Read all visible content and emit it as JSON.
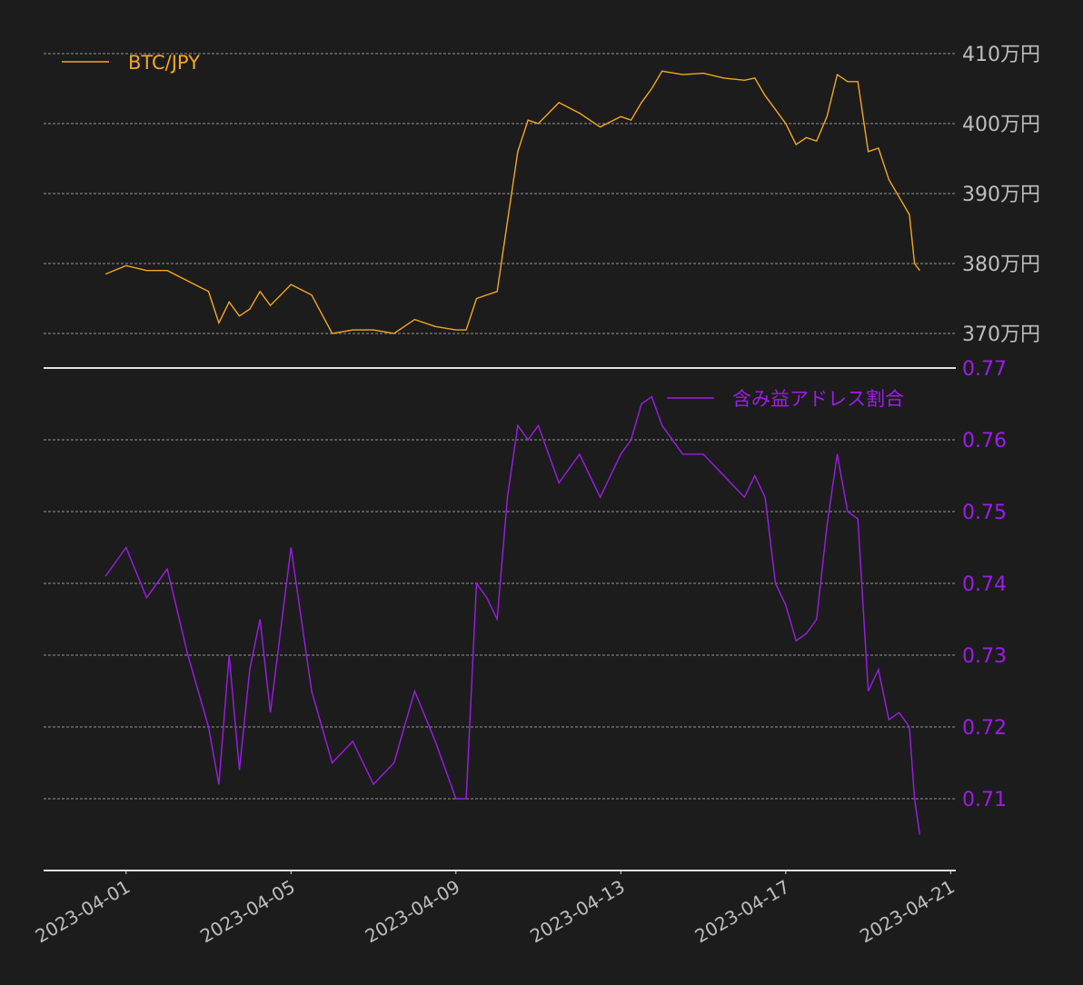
{
  "colors": {
    "background": "#1c1c1c",
    "btc_line": "#f5a623",
    "ratio_line": "#9d1ce8",
    "grid": "#bdbdbd",
    "axis": "#e0e0e0",
    "tick_text": "#bdbdbd"
  },
  "chart_data": [
    {
      "type": "line",
      "series": [
        {
          "name": "BTC/JPY",
          "x": [
            "2023-03-31T12:00",
            "2023-04-01T00:00",
            "2023-04-01T12:00",
            "2023-04-02T00:00",
            "2023-04-02T12:00",
            "2023-04-03T00:00",
            "2023-04-03T06:00",
            "2023-04-03T12:00",
            "2023-04-03T18:00",
            "2023-04-04T00:00",
            "2023-04-04T06:00",
            "2023-04-04T12:00",
            "2023-04-05T00:00",
            "2023-04-05T12:00",
            "2023-04-06T00:00",
            "2023-04-06T12:00",
            "2023-04-07T00:00",
            "2023-04-07T12:00",
            "2023-04-08T00:00",
            "2023-04-08T12:00",
            "2023-04-09T00:00",
            "2023-04-09T06:00",
            "2023-04-09T12:00",
            "2023-04-09T18:00",
            "2023-04-10T00:00",
            "2023-04-10T06:00",
            "2023-04-10T12:00",
            "2023-04-10T18:00",
            "2023-04-11T00:00",
            "2023-04-11T12:00",
            "2023-04-12T00:00",
            "2023-04-12T12:00",
            "2023-04-13T00:00",
            "2023-04-13T06:00",
            "2023-04-13T12:00",
            "2023-04-13T18:00",
            "2023-04-14T00:00",
            "2023-04-14T12:00",
            "2023-04-15T00:00",
            "2023-04-15T12:00",
            "2023-04-16T00:00",
            "2023-04-16T06:00",
            "2023-04-16T12:00",
            "2023-04-16T18:00",
            "2023-04-17T00:00",
            "2023-04-17T06:00",
            "2023-04-17T12:00",
            "2023-04-17T18:00",
            "2023-04-18T00:00",
            "2023-04-18T06:00",
            "2023-04-18T12:00",
            "2023-04-18T18:00",
            "2023-04-19T00:00",
            "2023-04-19T06:00",
            "2023-04-19T12:00",
            "2023-04-19T18:00",
            "2023-04-20T00:00",
            "2023-04-20T03:00",
            "2023-04-20T06:00"
          ],
          "values": [
            3785000,
            3797000,
            3790000,
            3790000,
            3775000,
            3760000,
            3715000,
            3745000,
            3725000,
            3735000,
            3760000,
            3740000,
            3770000,
            3755000,
            3700000,
            3705000,
            3705000,
            3700000,
            3720000,
            3710000,
            3705000,
            3705000,
            3750000,
            3755000,
            3760000,
            3860000,
            3960000,
            4005000,
            4000000,
            4030000,
            4015000,
            3995000,
            4010000,
            4005000,
            4030000,
            4050000,
            4075000,
            4070000,
            4072000,
            4065000,
            4062000,
            4065000,
            4040000,
            4020000,
            4000000,
            3970000,
            3980000,
            3975000,
            4010000,
            4070000,
            4060000,
            4060000,
            3960000,
            3965000,
            3920000,
            3895000,
            3870000,
            3800000,
            3790000
          ]
        }
      ],
      "yticks": [
        "370万円",
        "380万円",
        "390万円",
        "400万円",
        "410万円"
      ],
      "ytick_values": [
        3700000,
        3800000,
        3900000,
        4000000,
        4100000
      ],
      "ylim": [
        3680000,
        4112000
      ],
      "xlim": [
        "2023-03-30T00:00",
        "2023-04-21T03:00"
      ],
      "grid": true,
      "legend": "top-left"
    },
    {
      "type": "line",
      "series": [
        {
          "name": "含み益アドレス割合",
          "x": [
            "2023-03-31T12:00",
            "2023-04-01T00:00",
            "2023-04-01T12:00",
            "2023-04-02T00:00",
            "2023-04-02T12:00",
            "2023-04-03T00:00",
            "2023-04-03T06:00",
            "2023-04-03T12:00",
            "2023-04-03T18:00",
            "2023-04-04T00:00",
            "2023-04-04T06:00",
            "2023-04-04T12:00",
            "2023-04-05T00:00",
            "2023-04-05T12:00",
            "2023-04-06T00:00",
            "2023-04-06T12:00",
            "2023-04-07T00:00",
            "2023-04-07T12:00",
            "2023-04-08T00:00",
            "2023-04-08T12:00",
            "2023-04-09T00:00",
            "2023-04-09T06:00",
            "2023-04-09T12:00",
            "2023-04-09T18:00",
            "2023-04-10T00:00",
            "2023-04-10T06:00",
            "2023-04-10T12:00",
            "2023-04-10T18:00",
            "2023-04-11T00:00",
            "2023-04-11T12:00",
            "2023-04-12T00:00",
            "2023-04-12T12:00",
            "2023-04-13T00:00",
            "2023-04-13T06:00",
            "2023-04-13T12:00",
            "2023-04-13T18:00",
            "2023-04-14T00:00",
            "2023-04-14T12:00",
            "2023-04-15T00:00",
            "2023-04-15T12:00",
            "2023-04-16T00:00",
            "2023-04-16T06:00",
            "2023-04-16T12:00",
            "2023-04-16T18:00",
            "2023-04-17T00:00",
            "2023-04-17T06:00",
            "2023-04-17T12:00",
            "2023-04-17T18:00",
            "2023-04-18T00:00",
            "2023-04-18T06:00",
            "2023-04-18T12:00",
            "2023-04-18T18:00",
            "2023-04-19T00:00",
            "2023-04-19T06:00",
            "2023-04-19T12:00",
            "2023-04-19T18:00",
            "2023-04-20T00:00",
            "2023-04-20T03:00",
            "2023-04-20T06:00"
          ],
          "values": [
            0.741,
            0.745,
            0.738,
            0.742,
            0.73,
            0.72,
            0.712,
            0.73,
            0.714,
            0.728,
            0.735,
            0.722,
            0.745,
            0.725,
            0.715,
            0.718,
            0.712,
            0.715,
            0.725,
            0.718,
            0.71,
            0.71,
            0.74,
            0.738,
            0.735,
            0.752,
            0.762,
            0.76,
            0.762,
            0.754,
            0.758,
            0.752,
            0.758,
            0.76,
            0.765,
            0.766,
            0.762,
            0.758,
            0.758,
            0.755,
            0.752,
            0.755,
            0.752,
            0.74,
            0.737,
            0.732,
            0.733,
            0.735,
            0.748,
            0.758,
            0.75,
            0.749,
            0.725,
            0.728,
            0.721,
            0.722,
            0.72,
            0.71,
            0.705
          ]
        }
      ],
      "yticks": [
        "0.71",
        "0.72",
        "0.73",
        "0.74",
        "0.75",
        "0.76",
        "0.77"
      ],
      "ytick_values": [
        0.71,
        0.72,
        0.73,
        0.74,
        0.75,
        0.76,
        0.77
      ],
      "ylim": [
        0.7,
        0.77
      ],
      "xlim": [
        "2023-03-30T00:00",
        "2023-04-21T03:00"
      ],
      "xticks": [
        "2023-04-01",
        "2023-04-05",
        "2023-04-09",
        "2023-04-13",
        "2023-04-17",
        "2023-04-21"
      ],
      "grid": true,
      "legend": "top-right"
    }
  ]
}
